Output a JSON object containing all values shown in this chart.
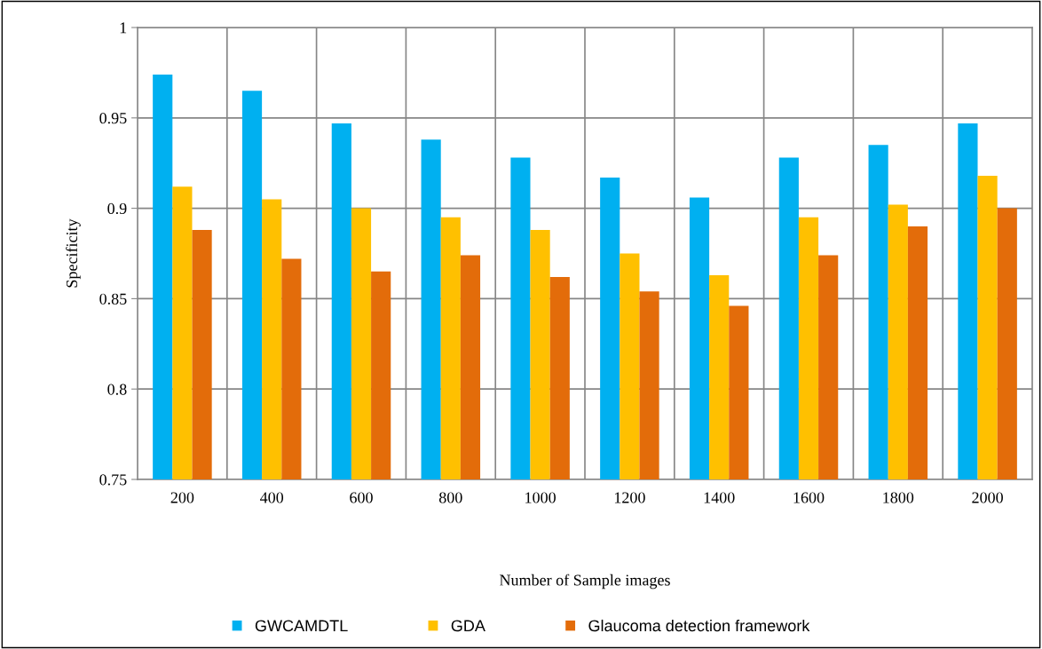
{
  "chart_data": {
    "type": "bar",
    "xlabel": "Number of Sample images",
    "ylabel": "Specificity",
    "categories": [
      "200",
      "400",
      "600",
      "800",
      "1000",
      "1200",
      "1400",
      "1600",
      "1800",
      "2000"
    ],
    "series": [
      {
        "name": "GWCAMDTL",
        "color": "#00b0f0",
        "values": [
          0.974,
          0.965,
          0.947,
          0.938,
          0.928,
          0.917,
          0.906,
          0.928,
          0.935,
          0.947
        ]
      },
      {
        "name": "GDA",
        "color": "#ffc000",
        "values": [
          0.912,
          0.905,
          0.9,
          0.895,
          0.888,
          0.875,
          0.863,
          0.895,
          0.902,
          0.918
        ]
      },
      {
        "name": "Glaucoma detection framework",
        "color": "#e36c0a",
        "values": [
          0.888,
          0.872,
          0.865,
          0.874,
          0.862,
          0.854,
          0.846,
          0.874,
          0.89,
          0.9
        ]
      }
    ],
    "ylim": [
      0.75,
      1
    ],
    "yticks": [
      {
        "value": 0.75,
        "label": "0.75"
      },
      {
        "value": 0.8,
        "label": "0.8"
      },
      {
        "value": 0.85,
        "label": "0.85"
      },
      {
        "value": 0.9,
        "label": "0.9"
      },
      {
        "value": 0.95,
        "label": "0.95"
      },
      1
    ],
    "grid": true,
    "legend": "bottom"
  }
}
